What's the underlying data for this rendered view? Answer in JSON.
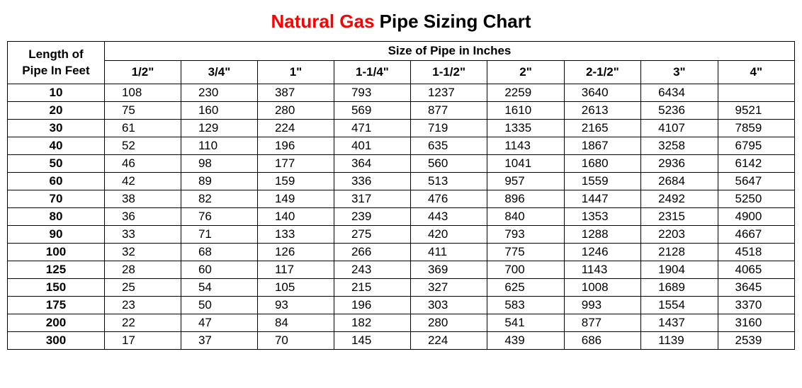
{
  "title": {
    "red_part": "Natural Gas",
    "black_part": " Pipe Sizing Chart"
  },
  "table": {
    "row_header_line1": "Length  of",
    "row_header_line2": "Pipe  In  Feet",
    "size_header": "Size of Pipe in Inches",
    "columns": [
      "1/2\"",
      "3/4\"",
      "1\"",
      "1-1/4\"",
      "1-1/2\"",
      "2\"",
      "2-1/2\"",
      "3\"",
      "4\""
    ],
    "lengths": [
      "10",
      "20",
      "30",
      "40",
      "50",
      "60",
      "70",
      "80",
      "90",
      "100",
      "125",
      "150",
      "175",
      "200",
      "300"
    ],
    "rows": [
      [
        "108",
        "230",
        "387",
        "793",
        "1237",
        "2259",
        "3640",
        "6434",
        ""
      ],
      [
        "75",
        "160",
        "280",
        "569",
        "877",
        "1610",
        "2613",
        "5236",
        "9521"
      ],
      [
        "61",
        "129",
        "224",
        "471",
        "719",
        "1335",
        "2165",
        "4107",
        "7859"
      ],
      [
        "52",
        "110",
        "196",
        "401",
        "635",
        "1143",
        "1867",
        "3258",
        "6795"
      ],
      [
        "46",
        "98",
        "177",
        "364",
        "560",
        "1041",
        "1680",
        "2936",
        "6142"
      ],
      [
        "42",
        "89",
        "159",
        "336",
        "513",
        "957",
        "1559",
        "2684",
        "5647"
      ],
      [
        "38",
        "82",
        "149",
        "317",
        "476",
        "896",
        "1447",
        "2492",
        "5250"
      ],
      [
        "36",
        "76",
        "140",
        "239",
        "443",
        "840",
        "1353",
        "2315",
        "4900"
      ],
      [
        "33",
        "71",
        "133",
        "275",
        "420",
        "793",
        "1288",
        "2203",
        "4667"
      ],
      [
        "32",
        "68",
        "126",
        "266",
        "411",
        "775",
        "1246",
        "2128",
        "4518"
      ],
      [
        "28",
        "60",
        "117",
        "243",
        "369",
        "700",
        "1143",
        "1904",
        "4065"
      ],
      [
        "25",
        "54",
        "105",
        "215",
        "327",
        "625",
        "1008",
        "1689",
        "3645"
      ],
      [
        "23",
        "50",
        "93",
        "196",
        "303",
        "583",
        "993",
        "1554",
        "3370"
      ],
      [
        "22",
        "47",
        "84",
        "182",
        "280",
        "541",
        "877",
        "1437",
        "3160"
      ],
      [
        "17",
        "37",
        "70",
        "145",
        "224",
        "439",
        "686",
        "1139",
        "2539"
      ]
    ]
  },
  "style": {
    "title_red_color": "#ff0000",
    "title_black_color": "#000000",
    "background_color": "#ffffff",
    "border_color": "#000000",
    "title_fontsize": 26,
    "table_fontsize": 17,
    "col_len_width": 140,
    "col_data_width": 110
  }
}
